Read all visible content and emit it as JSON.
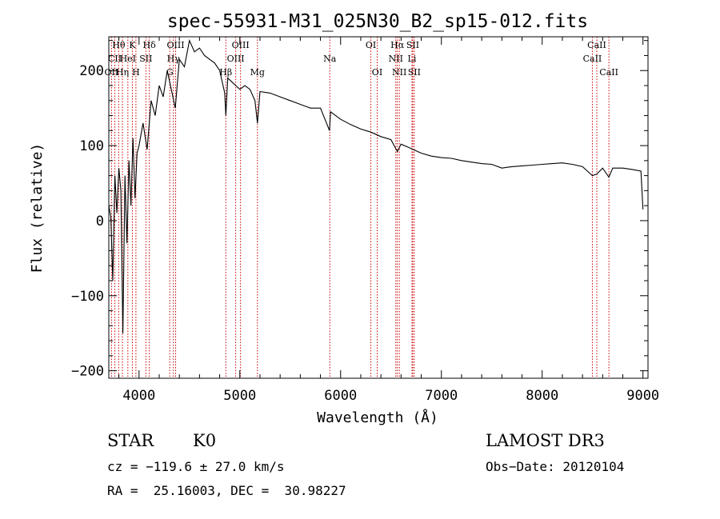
{
  "chart_data": {
    "type": "line",
    "title": "spec-55931-M31_025N30_B2_sp15-012.fits",
    "xlabel": "Wavelength (Å)",
    "ylabel": "Flux (relative)",
    "xlim": [
      3700,
      9050
    ],
    "ylim": [
      -210,
      245
    ],
    "x_ticks": [
      4000,
      5000,
      6000,
      7000,
      8000,
      9000
    ],
    "x_tick_labels": [
      "4000",
      "5000",
      "6000",
      "7000",
      "8000",
      "9000"
    ],
    "y_ticks": [
      -200,
      -100,
      0,
      100,
      200
    ],
    "y_tick_labels": [
      "−200",
      "−100",
      "0",
      "100",
      "200"
    ],
    "spectrum": {
      "x": [
        3700,
        3720,
        3740,
        3760,
        3780,
        3800,
        3820,
        3840,
        3860,
        3880,
        3900,
        3920,
        3940,
        3960,
        3980,
        4000,
        4040,
        4080,
        4120,
        4160,
        4200,
        4240,
        4280,
        4320,
        4360,
        4400,
        4450,
        4500,
        4550,
        4600,
        4650,
        4700,
        4750,
        4800,
        4850,
        4861,
        4880,
        4920,
        4960,
        5000,
        5050,
        5100,
        5150,
        5175,
        5200,
        5300,
        5400,
        5500,
        5600,
        5700,
        5800,
        5890,
        5900,
        6000,
        6100,
        6200,
        6300,
        6400,
        6500,
        6563,
        6600,
        6700,
        6800,
        6900,
        7000,
        7100,
        7200,
        7300,
        7400,
        7500,
        7600,
        7700,
        7800,
        7900,
        8000,
        8100,
        8200,
        8300,
        8400,
        8498,
        8542,
        8600,
        8662,
        8700,
        8800,
        8900,
        8980,
        9000
      ],
      "flux": [
        20,
        5,
        -80,
        60,
        10,
        70,
        40,
        -150,
        60,
        -30,
        80,
        20,
        110,
        30,
        90,
        100,
        130,
        95,
        160,
        140,
        180,
        165,
        200,
        175,
        150,
        215,
        205,
        240,
        225,
        230,
        220,
        215,
        210,
        200,
        170,
        140,
        190,
        185,
        180,
        175,
        180,
        175,
        160,
        130,
        172,
        170,
        165,
        160,
        155,
        150,
        150,
        120,
        145,
        135,
        128,
        122,
        118,
        112,
        108,
        92,
        102,
        96,
        90,
        86,
        84,
        83,
        80,
        78,
        76,
        75,
        70,
        72,
        73,
        74,
        75,
        76,
        77,
        75,
        72,
        60,
        62,
        70,
        58,
        70,
        70,
        68,
        66,
        15
      ]
    },
    "lines": [
      {
        "label": "Hθ",
        "x": 3798,
        "row": 1
      },
      {
        "label": "CII",
        "x": 3760,
        "row": 2
      },
      {
        "label": "OII",
        "x": 3727,
        "row": 3
      },
      {
        "label": "Hη",
        "x": 3835,
        "row": 3
      },
      {
        "label": "K",
        "x": 3934,
        "row": 1
      },
      {
        "label": "HeI",
        "x": 3889,
        "row": 2
      },
      {
        "label": "SII",
        "x": 4068,
        "row": 2
      },
      {
        "label": "Hδ",
        "x": 4102,
        "row": 1
      },
      {
        "label": "H",
        "x": 3969,
        "row": 3
      },
      {
        "label": "OIII",
        "x": 4363,
        "row": 1
      },
      {
        "label": "Hγ",
        "x": 4341,
        "row": 2
      },
      {
        "label": "G",
        "x": 4305,
        "row": 3
      },
      {
        "label": "OIII",
        "x": 5007,
        "row": 1
      },
      {
        "label": "OIII",
        "x": 4959,
        "row": 2
      },
      {
        "label": "Hβ",
        "x": 4861,
        "row": 3
      },
      {
        "label": "Mg",
        "x": 5175,
        "row": 3
      },
      {
        "label": "Na",
        "x": 5893,
        "row": 2
      },
      {
        "label": "OI",
        "x": 6300,
        "row": 1
      },
      {
        "label": "OI",
        "x": 6363,
        "row": 3
      },
      {
        "label": "Hα",
        "x": 6563,
        "row": 1
      },
      {
        "label": "SII",
        "x": 6716,
        "row": 1
      },
      {
        "label": "NII",
        "x": 6548,
        "row": 2
      },
      {
        "label": "Li",
        "x": 6708,
        "row": 2
      },
      {
        "label": "NII",
        "x": 6583,
        "row": 3
      },
      {
        "label": "SII",
        "x": 6731,
        "row": 3
      },
      {
        "label": "CaII",
        "x": 8542,
        "row": 1
      },
      {
        "label": "CaII",
        "x": 8498,
        "row": 2
      },
      {
        "label": "CaII",
        "x": 8662,
        "row": 3
      }
    ],
    "line_color": "#cc0000"
  },
  "info": {
    "class": "STAR",
    "subclass": "K0",
    "survey": "LAMOST DR3",
    "cz": "cz = −119.6 ± 27.0 km/s",
    "obs_date": "Obs−Date: 20120104",
    "coords": "RA =  25.16003, DEC =  30.98227"
  }
}
